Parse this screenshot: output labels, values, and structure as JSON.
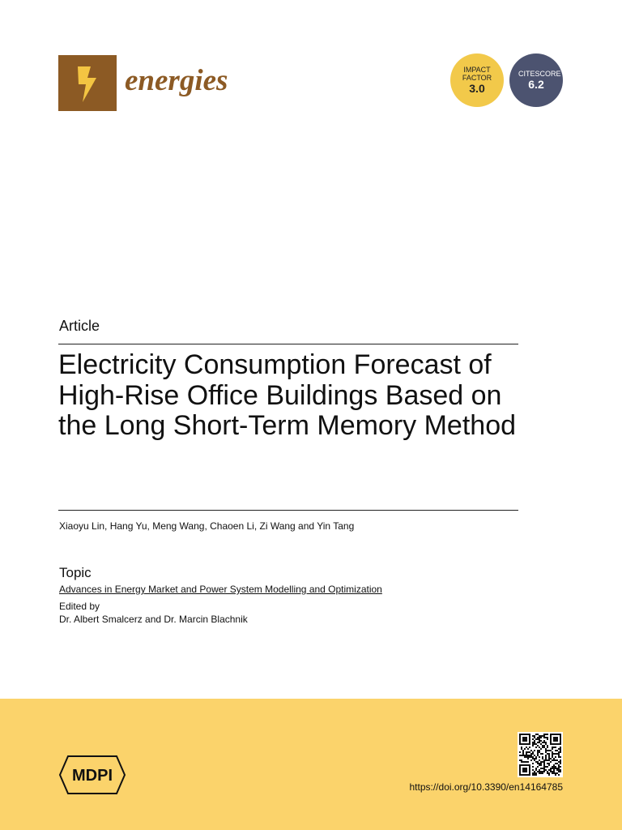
{
  "header": {
    "journal": "energies",
    "impact_factor": {
      "label": "IMPACT FACTOR",
      "value": "3.0"
    },
    "citescore": {
      "label": "CITESCORE",
      "value": "6.2"
    }
  },
  "article": {
    "type": "Article",
    "title": "Electricity Consumption Forecast of High-Rise Office Buildings Based on the Long Short-Term Memory Method",
    "authors": "Xiaoyu Lin, Hang Yu, Meng Wang, Chaoen Li, Zi Wang and Yin Tang"
  },
  "topic": {
    "heading": "Topic",
    "name": "Advances in Energy Market and Power System Modelling and Optimization",
    "edited_by": "Edited by",
    "editors": "Dr. Albert Smalcerz and Dr. Marcin Blachnik"
  },
  "footer": {
    "publisher": "MDPI",
    "doi": "https://doi.org/10.3390/en14164785"
  }
}
